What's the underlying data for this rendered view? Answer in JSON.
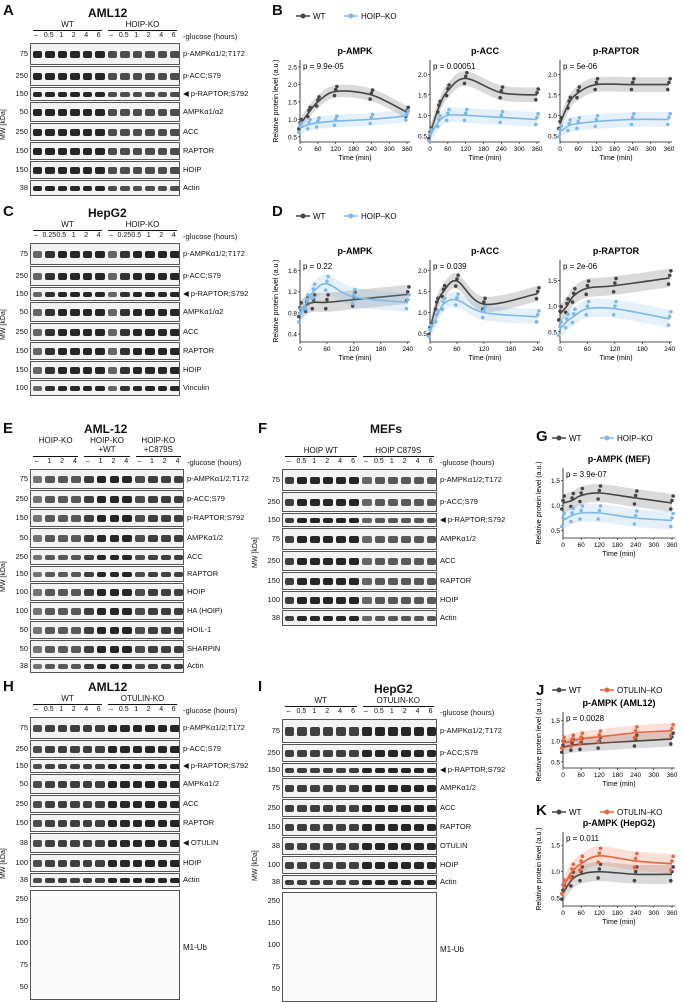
{
  "panels": {
    "A": {
      "label": "A",
      "title": "AML12",
      "groups": [
        "WT",
        "HOIP-KO"
      ],
      "lanes": [
        "–",
        "0.5",
        "1",
        "2",
        "4",
        "6",
        "–",
        "0.5",
        "1",
        "2",
        "4",
        "6"
      ],
      "cond": "-glucose (hours)",
      "mwtitle": "MW [kDa]",
      "rows": [
        {
          "mw": [
            "75"
          ],
          "label": "p-AMPKα1/2;T172"
        },
        {
          "mw": [
            "250"
          ],
          "label": "p-ACC;S79"
        },
        {
          "mw": [
            "150"
          ],
          "label": "◀ p-RAPTOR;S792"
        },
        {
          "mw": [
            "50"
          ],
          "label": "AMPKα1/α2"
        },
        {
          "mw": [
            "250"
          ],
          "label": "ACC"
        },
        {
          "mw": [
            "150"
          ],
          "label": "RAPTOR"
        },
        {
          "mw": [
            "150"
          ],
          "label": "HOIP"
        },
        {
          "mw": [
            "38"
          ],
          "label": "Actin"
        }
      ]
    },
    "C": {
      "label": "C",
      "title": "HepG2",
      "groups": [
        "WT",
        "HOIP-KO"
      ],
      "lanes": [
        "–",
        "0.25",
        "0.5",
        "1",
        "2",
        "4",
        "–",
        "0.25",
        "0.5",
        "1",
        "2",
        "4"
      ],
      "cond": "-glucose (hours)",
      "mwtitle": "MW [kDa]",
      "rows": [
        {
          "mw": [
            "75"
          ],
          "label": "p-AMPKα1/2;T172"
        },
        {
          "mw": [
            "250"
          ],
          "label": "p-ACC;S79"
        },
        {
          "mw": [
            "150"
          ],
          "label": "◀ p-RAPTOR;S792"
        },
        {
          "mw": [
            "50"
          ],
          "label": "AMPKα1/α2"
        },
        {
          "mw": [
            "250"
          ],
          "label": "ACC"
        },
        {
          "mw": [
            "150"
          ],
          "label": "RAPTOR"
        },
        {
          "mw": [
            "150"
          ],
          "label": "HOIP"
        },
        {
          "mw": [
            "100"
          ],
          "label": "Vinculin"
        }
      ]
    },
    "E": {
      "label": "E",
      "title": "AML-12",
      "groups": [
        "HOIP-KO",
        "HOIP-KO +WT",
        "HOIP-KO +C879S"
      ],
      "lanes": [
        "–",
        "1",
        "2",
        "4",
        "–",
        "1",
        "2",
        "4",
        "–",
        "1",
        "2",
        "4"
      ],
      "cond": "-glucose (hours)",
      "mwtitle": "MW [kDa]",
      "rows": [
        {
          "mw": [
            "75"
          ],
          "label": "p-AMPKα1/2;T172"
        },
        {
          "mw": [
            "250"
          ],
          "label": "p-ACC;S79"
        },
        {
          "mw": [
            "150"
          ],
          "label": "p-RAPTOR;S792"
        },
        {
          "mw": [
            "50"
          ],
          "label": "AMPKα1/2"
        },
        {
          "mw": [
            "250"
          ],
          "label": "ACC"
        },
        {
          "mw": [
            "150"
          ],
          "label": "RAPTOR"
        },
        {
          "mw": [
            "100"
          ],
          "label": "HOIP"
        },
        {
          "mw": [
            "100"
          ],
          "label": "HA (HOIP)"
        },
        {
          "mw": [
            "50"
          ],
          "label": "HOIL-1"
        },
        {
          "mw": [
            "50"
          ],
          "label": "SHARPIN"
        },
        {
          "mw": [
            "38"
          ],
          "label": "Actin"
        }
      ]
    },
    "F": {
      "label": "F",
      "title": "MEFs",
      "groups": [
        "HOIP WT",
        "HOIP C879S"
      ],
      "lanes": [
        "–",
        "0.5",
        "1",
        "2",
        "4",
        "6",
        "–",
        "0.5",
        "1",
        "2",
        "4",
        "6"
      ],
      "cond": "-glucose (hours)",
      "mwtitle": "MW [kDa]",
      "rows": [
        {
          "mw": [
            "75"
          ],
          "label": "p-AMPKα1/2;T172"
        },
        {
          "mw": [
            "250"
          ],
          "label": "p-ACC;S79"
        },
        {
          "mw": [
            "150"
          ],
          "label": "◀ p-RAPTOR;S792"
        },
        {
          "mw": [
            "75"
          ],
          "label": "AMPKα1/2"
        },
        {
          "mw": [
            "250"
          ],
          "label": "ACC"
        },
        {
          "mw": [
            "150"
          ],
          "label": "RAPTOR"
        },
        {
          "mw": [
            "100"
          ],
          "label": "HOIP"
        },
        {
          "mw": [
            "38"
          ],
          "label": "Actin"
        }
      ]
    },
    "H": {
      "label": "H",
      "title": "AML12",
      "groups": [
        "WT",
        "OTULIN-KO"
      ],
      "lanes": [
        "–",
        "0.5",
        "1",
        "2",
        "4",
        "6",
        "–",
        "0.5",
        "1",
        "2",
        "4",
        "6"
      ],
      "cond": "-glucose (hours)",
      "mwtitle": "MW [kDa]",
      "rows": [
        {
          "mw": [
            "75"
          ],
          "label": "p-AMPKα1/2;T172"
        },
        {
          "mw": [
            "250"
          ],
          "label": "p-ACC;S79"
        },
        {
          "mw": [
            "150"
          ],
          "label": "◀ p-RAPTOR;S792"
        },
        {
          "mw": [
            "50"
          ],
          "label": "AMPKα1/2"
        },
        {
          "mw": [
            "250"
          ],
          "label": "ACC"
        },
        {
          "mw": [
            "150"
          ],
          "label": "RAPTOR"
        },
        {
          "mw": [
            "38"
          ],
          "label": "◀ OTULIN"
        },
        {
          "mw": [
            "100"
          ],
          "label": "HOIP"
        },
        {
          "mw": [
            "38"
          ],
          "label": "Actin"
        }
      ],
      "ub": {
        "label": "M1-Ub",
        "mw": [
          "250",
          "150",
          "100",
          "75",
          "50"
        ]
      }
    },
    "I": {
      "label": "I",
      "title": "HepG2",
      "groups": [
        "WT",
        "OTULIN-KO"
      ],
      "lanes": [
        "–",
        "0.5",
        "1",
        "2",
        "4",
        "6",
        "–",
        "0.5",
        "1",
        "2",
        "4",
        "6"
      ],
      "cond": "-glucose (hours)",
      "mwtitle": "MW [kDa]",
      "rows": [
        {
          "mw": [
            "75"
          ],
          "label": "p-AMPKα1/2;T172"
        },
        {
          "mw": [
            "250"
          ],
          "label": "p-ACC;S79"
        },
        {
          "mw": [
            "150"
          ],
          "label": "◀ p-RAPTOR;S792"
        },
        {
          "mw": [
            "75"
          ],
          "label": "AMPKα1/2"
        },
        {
          "mw": [
            "250"
          ],
          "label": "ACC"
        },
        {
          "mw": [
            "150"
          ],
          "label": "RAPTOR"
        },
        {
          "mw": [
            "38"
          ],
          "label": "OTULIN"
        },
        {
          "mw": [
            "100"
          ],
          "label": "HOIP"
        },
        {
          "mw": [
            "38"
          ],
          "label": "Actin"
        }
      ],
      "ub": {
        "label": "M1-Ub",
        "mw": [
          "250",
          "150",
          "100",
          "75",
          "50"
        ]
      }
    }
  },
  "colors": {
    "wt": "#444444",
    "hoip": "#7fb8e8",
    "otulin": "#e8643a"
  },
  "chart_data": [
    {
      "id": "B1",
      "panel": "B",
      "type": "line",
      "title": "p-AMPK",
      "xlabel": "Time (min)",
      "ylabel": "Relative protein level (a.u.)",
      "pval": "p = 9.9e-05",
      "xticks": [
        0,
        60,
        120,
        180,
        240,
        300,
        360
      ],
      "yticks": [
        0.5,
        1.0,
        1.5,
        2.0,
        2.5
      ],
      "ylim": [
        0.35,
        2.7
      ],
      "xlim": [
        0,
        370
      ],
      "legend": [
        "WT",
        "HOIP–KO"
      ],
      "series": [
        {
          "name": "WT",
          "x": [
            0,
            30,
            60,
            120,
            240,
            360
          ],
          "values": [
            0.85,
            1.2,
            1.5,
            1.8,
            1.7,
            1.2
          ]
        },
        {
          "name": "HOIP–KO",
          "x": [
            0,
            30,
            60,
            120,
            240,
            360
          ],
          "values": [
            0.75,
            0.85,
            0.9,
            0.95,
            1.0,
            1.1
          ]
        }
      ]
    },
    {
      "id": "B2",
      "panel": "B",
      "type": "line",
      "title": "p-ACC",
      "pval": "p = 0.00051",
      "xlabel": "Time (min)",
      "xticks": [
        0,
        60,
        120,
        180,
        240,
        300,
        360
      ],
      "yticks": [
        0.5,
        1.0,
        1.5,
        2.0
      ],
      "ylim": [
        0.35,
        2.35
      ],
      "xlim": [
        0,
        370
      ],
      "series": [
        {
          "name": "WT",
          "x": [
            0,
            30,
            60,
            120,
            240,
            360
          ],
          "values": [
            0.55,
            1.2,
            1.6,
            1.9,
            1.55,
            1.5
          ]
        },
        {
          "name": "HOIP–KO",
          "x": [
            0,
            30,
            60,
            120,
            240,
            360
          ],
          "values": [
            0.5,
            0.85,
            1.0,
            1.0,
            0.95,
            0.9
          ]
        }
      ]
    },
    {
      "id": "B3",
      "panel": "B",
      "type": "line",
      "title": "p-RAPTOR",
      "pval": "p = 5e-06",
      "xlabel": "Time (min)",
      "xticks": [
        0,
        60,
        120,
        180,
        240,
        300,
        360
      ],
      "yticks": [
        0.5,
        1.0,
        1.5,
        2.0
      ],
      "ylim": [
        0.35,
        2.35
      ],
      "xlim": [
        0,
        370
      ],
      "series": [
        {
          "name": "WT",
          "x": [
            0,
            30,
            60,
            120,
            240,
            360
          ],
          "values": [
            0.8,
            1.3,
            1.55,
            1.75,
            1.75,
            1.75
          ]
        },
        {
          "name": "HOIP–KO",
          "x": [
            0,
            30,
            60,
            120,
            240,
            360
          ],
          "values": [
            0.6,
            0.75,
            0.8,
            0.85,
            0.9,
            0.9
          ]
        }
      ]
    },
    {
      "id": "D1",
      "panel": "D",
      "type": "line",
      "title": "p-AMPK",
      "pval": "p = 0.22",
      "xlabel": "Time (min)",
      "ylabel": "Relative protein level (a.u.)",
      "legend": [
        "WT",
        "HOIP–KO"
      ],
      "xticks": [
        0,
        60,
        120,
        180,
        240
      ],
      "yticks": [
        0.4,
        0.8,
        1.2,
        1.6
      ],
      "ylim": [
        0.25,
        1.8
      ],
      "xlim": [
        0,
        245
      ],
      "series": [
        {
          "name": "WT",
          "x": [
            0,
            15,
            30,
            60,
            120,
            240
          ],
          "values": [
            0.85,
            0.95,
            1.0,
            1.0,
            1.05,
            1.15
          ]
        },
        {
          "name": "HOIP–KO",
          "x": [
            0,
            15,
            30,
            60,
            120,
            240
          ],
          "values": [
            0.75,
            1.0,
            1.2,
            1.35,
            1.1,
            1.0
          ]
        }
      ]
    },
    {
      "id": "D2",
      "panel": "D",
      "type": "line",
      "title": "p-ACC",
      "pval": "p = 0.039",
      "xlabel": "Time (min)",
      "xticks": [
        0,
        60,
        120,
        180,
        240
      ],
      "yticks": [
        0.5,
        1.0,
        1.5,
        2.0
      ],
      "ylim": [
        0.3,
        2.25
      ],
      "xlim": [
        0,
        245
      ],
      "series": [
        {
          "name": "WT",
          "x": [
            0,
            15,
            30,
            60,
            120,
            240
          ],
          "values": [
            0.6,
            1.2,
            1.5,
            1.75,
            1.2,
            1.45
          ]
        },
        {
          "name": "HOIP–KO",
          "x": [
            0,
            15,
            30,
            60,
            120,
            240
          ],
          "values": [
            0.55,
            0.9,
            1.2,
            1.3,
            1.0,
            0.9
          ]
        }
      ]
    },
    {
      "id": "D3",
      "panel": "D",
      "type": "line",
      "title": "p-RAPTOR",
      "pval": "p = 2e-06",
      "xlabel": "Time (min)",
      "xticks": [
        0,
        60,
        120,
        180,
        240
      ],
      "yticks": [
        0.5,
        1.0,
        1.5
      ],
      "ylim": [
        0.3,
        1.9
      ],
      "xlim": [
        0,
        245
      ],
      "series": [
        {
          "name": "WT",
          "x": [
            0,
            15,
            30,
            60,
            120,
            240
          ],
          "values": [
            0.85,
            1.0,
            1.2,
            1.35,
            1.4,
            1.55
          ]
        },
        {
          "name": "HOIP–KO",
          "x": [
            0,
            15,
            30,
            60,
            120,
            240
          ],
          "values": [
            0.55,
            0.7,
            0.8,
            0.95,
            0.95,
            0.75
          ]
        }
      ]
    },
    {
      "id": "G",
      "panel": "G",
      "type": "line",
      "title": "p-AMPK (MEF)",
      "pval": "p = 3.9e-07",
      "xlabel": "Time (min)",
      "ylabel": "Relative protein level (a.u.)",
      "legend": [
        "WT",
        "HOIP–KO"
      ],
      "xticks": [
        0,
        60,
        120,
        180,
        240,
        300,
        360
      ],
      "yticks": [
        0.5,
        1.0,
        1.5
      ],
      "ylim": [
        0.35,
        1.75
      ],
      "xlim": [
        0,
        370
      ],
      "series": [
        {
          "name": "WT",
          "x": [
            0,
            30,
            60,
            120,
            240,
            360
          ],
          "values": [
            1.05,
            1.1,
            1.2,
            1.25,
            1.15,
            1.05
          ]
        },
        {
          "name": "HOIP–KO",
          "x": [
            0,
            30,
            60,
            120,
            240,
            360
          ],
          "values": [
            0.7,
            0.8,
            0.85,
            0.85,
            0.75,
            0.7
          ]
        }
      ]
    },
    {
      "id": "J",
      "panel": "J",
      "type": "line",
      "title": "p-AMPK (AML12)",
      "pval": "p = 0.0028",
      "xlabel": "Time (min)",
      "ylabel": "Relative protein level (a.u.)",
      "legend": [
        "WT",
        "OTULIN–KO"
      ],
      "xticks": [
        0,
        60,
        120,
        180,
        240,
        300,
        360
      ],
      "yticks": [
        0.5,
        1.0,
        1.5
      ],
      "ylim": [
        0.35,
        1.7
      ],
      "xlim": [
        0,
        370
      ],
      "series": [
        {
          "name": "WT",
          "x": [
            0,
            30,
            60,
            120,
            240,
            360
          ],
          "values": [
            0.85,
            0.9,
            0.92,
            0.95,
            1.0,
            1.05
          ]
        },
        {
          "name": "OTULIN–KO",
          "x": [
            0,
            30,
            60,
            120,
            240,
            360
          ],
          "values": [
            0.95,
            1.0,
            1.05,
            1.1,
            1.2,
            1.25
          ]
        }
      ]
    },
    {
      "id": "K",
      "panel": "K",
      "type": "line",
      "title": "p-AMPK (HepG2)",
      "pval": "p = 0.011",
      "xlabel": "Time (min)",
      "ylabel": "Relative protein level (a.u.)",
      "legend": [
        "WT",
        "OTULIN–KO"
      ],
      "xticks": [
        0,
        60,
        120,
        180,
        240,
        300,
        360
      ],
      "yticks": [
        0.5,
        1.0,
        1.5
      ],
      "ylim": [
        0.35,
        1.75
      ],
      "xlim": [
        0,
        370
      ],
      "series": [
        {
          "name": "WT",
          "x": [
            0,
            30,
            60,
            120,
            240,
            360
          ],
          "values": [
            0.6,
            0.85,
            0.95,
            1.0,
            0.95,
            0.95
          ]
        },
        {
          "name": "OTULIN–KO",
          "x": [
            0,
            30,
            60,
            120,
            240,
            360
          ],
          "values": [
            0.7,
            1.0,
            1.15,
            1.3,
            1.2,
            1.15
          ]
        }
      ]
    }
  ]
}
